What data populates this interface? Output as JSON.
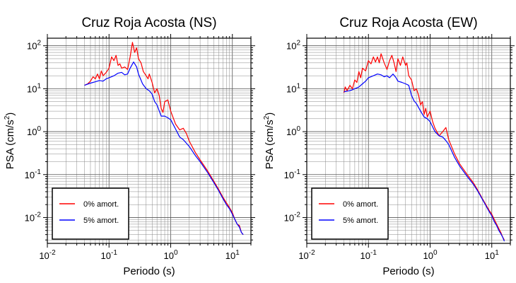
{
  "chart_data": [
    {
      "type": "line",
      "title": "Cruz Roja Acosta (NS)",
      "xlabel": "Periodo (s)",
      "ylabel_main": "PSA (cm/s",
      "ylabel_sup": "2",
      "ylabel_tail": ")",
      "xscale": "log",
      "yscale": "log",
      "xlim": [
        0.01,
        20
      ],
      "ylim": [
        0.0025,
        150
      ],
      "grid": true,
      "legend_position": "bottom-left",
      "x_ticks": [
        {
          "value": 0.01,
          "base": "10",
          "exp": "-2"
        },
        {
          "value": 0.1,
          "base": "10",
          "exp": "-1"
        },
        {
          "value": 1,
          "base": "10",
          "exp": "0"
        },
        {
          "value": 10,
          "base": "10",
          "exp": "1"
        }
      ],
      "y_ticks": [
        {
          "value": 0.01,
          "base": "10",
          "exp": "-2"
        },
        {
          "value": 0.1,
          "base": "10",
          "exp": "-1"
        },
        {
          "value": 1,
          "base": "10",
          "exp": "0"
        },
        {
          "value": 10,
          "base": "10",
          "exp": "1"
        },
        {
          "value": 100,
          "base": "10",
          "exp": "2"
        }
      ],
      "series": [
        {
          "name": "0% amort.",
          "color": "#ff0000",
          "points": [
            [
              0.04,
              12
            ],
            [
              0.045,
              13
            ],
            [
              0.05,
              15
            ],
            [
              0.055,
              19
            ],
            [
              0.06,
              17
            ],
            [
              0.065,
              22
            ],
            [
              0.07,
              17
            ],
            [
              0.075,
              26
            ],
            [
              0.08,
              20
            ],
            [
              0.09,
              24
            ],
            [
              0.1,
              30
            ],
            [
              0.11,
              55
            ],
            [
              0.12,
              45
            ],
            [
              0.13,
              60
            ],
            [
              0.14,
              35
            ],
            [
              0.15,
              38
            ],
            [
              0.16,
              30
            ],
            [
              0.18,
              32
            ],
            [
              0.2,
              28
            ],
            [
              0.22,
              55
            ],
            [
              0.24,
              120
            ],
            [
              0.26,
              70
            ],
            [
              0.28,
              90
            ],
            [
              0.3,
              50
            ],
            [
              0.33,
              40
            ],
            [
              0.36,
              25
            ],
            [
              0.4,
              20
            ],
            [
              0.43,
              17
            ],
            [
              0.45,
              22
            ],
            [
              0.5,
              14
            ],
            [
              0.55,
              8
            ],
            [
              0.6,
              10
            ],
            [
              0.65,
              7
            ],
            [
              0.7,
              3.5
            ],
            [
              0.75,
              2.8
            ],
            [
              0.8,
              5
            ],
            [
              0.9,
              5.5
            ],
            [
              1.0,
              3
            ],
            [
              1.2,
              1.5
            ],
            [
              1.4,
              1.1
            ],
            [
              1.6,
              1.2
            ],
            [
              1.8,
              0.9
            ],
            [
              2.0,
              0.6
            ],
            [
              2.5,
              0.33
            ],
            [
              3,
              0.22
            ],
            [
              4,
              0.12
            ],
            [
              5,
              0.07
            ],
            [
              6,
              0.045
            ],
            [
              7,
              0.03
            ],
            [
              8,
              0.022
            ],
            [
              9,
              0.017
            ],
            [
              10,
              0.013
            ],
            [
              11,
              0.009
            ],
            [
              12,
              0.007
            ],
            [
              13,
              0.0065
            ],
            [
              14,
              0.0045
            ],
            [
              15,
              0.004
            ]
          ]
        },
        {
          "name": "5% amort.",
          "color": "#0000ff",
          "points": [
            [
              0.04,
              12
            ],
            [
              0.05,
              13.5
            ],
            [
              0.06,
              14.5
            ],
            [
              0.07,
              15.5
            ],
            [
              0.08,
              15
            ],
            [
              0.09,
              17
            ],
            [
              0.1,
              18
            ],
            [
              0.12,
              20
            ],
            [
              0.14,
              23
            ],
            [
              0.16,
              24
            ],
            [
              0.18,
              21
            ],
            [
              0.2,
              22
            ],
            [
              0.22,
              30
            ],
            [
              0.25,
              42
            ],
            [
              0.28,
              32
            ],
            [
              0.3,
              22
            ],
            [
              0.35,
              13
            ],
            [
              0.4,
              10
            ],
            [
              0.45,
              9
            ],
            [
              0.5,
              7.5
            ],
            [
              0.55,
              5
            ],
            [
              0.6,
              4.2
            ],
            [
              0.7,
              2.3
            ],
            [
              0.8,
              2.3
            ],
            [
              0.9,
              2.1
            ],
            [
              1.0,
              1.9
            ],
            [
              1.2,
              1.15
            ],
            [
              1.4,
              0.75
            ],
            [
              1.6,
              0.65
            ],
            [
              2.0,
              0.45
            ],
            [
              2.5,
              0.28
            ],
            [
              3,
              0.2
            ],
            [
              4,
              0.11
            ],
            [
              5,
              0.065
            ],
            [
              6,
              0.042
            ],
            [
              7,
              0.028
            ],
            [
              8,
              0.02
            ],
            [
              9,
              0.016
            ],
            [
              10,
              0.012
            ],
            [
              11,
              0.009
            ],
            [
              12,
              0.007
            ],
            [
              13,
              0.006
            ],
            [
              14,
              0.0045
            ],
            [
              15,
              0.004
            ]
          ]
        }
      ]
    },
    {
      "type": "line",
      "title": "Cruz Roja Acosta (EW)",
      "xlabel": "Periodo (s)",
      "ylabel_main": "PSA (cm/s",
      "ylabel_sup": "2",
      "ylabel_tail": ")",
      "xscale": "log",
      "yscale": "log",
      "xlim": [
        0.01,
        20
      ],
      "ylim": [
        0.0025,
        150
      ],
      "grid": true,
      "legend_position": "bottom-left",
      "x_ticks": [
        {
          "value": 0.01,
          "base": "10",
          "exp": "-2"
        },
        {
          "value": 0.1,
          "base": "10",
          "exp": "-1"
        },
        {
          "value": 1,
          "base": "10",
          "exp": "0"
        },
        {
          "value": 10,
          "base": "10",
          "exp": "1"
        }
      ],
      "y_ticks": [
        {
          "value": 0.01,
          "base": "10",
          "exp": "-2"
        },
        {
          "value": 0.1,
          "base": "10",
          "exp": "-1"
        },
        {
          "value": 1,
          "base": "10",
          "exp": "0"
        },
        {
          "value": 10,
          "base": "10",
          "exp": "1"
        },
        {
          "value": 100,
          "base": "10",
          "exp": "2"
        }
      ],
      "series": [
        {
          "name": "0% amort.",
          "color": "#ff0000",
          "points": [
            [
              0.04,
              8
            ],
            [
              0.042,
              11
            ],
            [
              0.045,
              9
            ],
            [
              0.05,
              12
            ],
            [
              0.055,
              10
            ],
            [
              0.06,
              16
            ],
            [
              0.065,
              14
            ],
            [
              0.07,
              25
            ],
            [
              0.075,
              18
            ],
            [
              0.08,
              30
            ],
            [
              0.09,
              26
            ],
            [
              0.1,
              45
            ],
            [
              0.11,
              38
            ],
            [
              0.12,
              55
            ],
            [
              0.13,
              42
            ],
            [
              0.14,
              55
            ],
            [
              0.15,
              40
            ],
            [
              0.16,
              65
            ],
            [
              0.18,
              40
            ],
            [
              0.2,
              28
            ],
            [
              0.22,
              45
            ],
            [
              0.24,
              60
            ],
            [
              0.26,
              40
            ],
            [
              0.28,
              25
            ],
            [
              0.3,
              50
            ],
            [
              0.33,
              35
            ],
            [
              0.36,
              55
            ],
            [
              0.4,
              35
            ],
            [
              0.42,
              40
            ],
            [
              0.45,
              20
            ],
            [
              0.5,
              16
            ],
            [
              0.55,
              9
            ],
            [
              0.6,
              10
            ],
            [
              0.65,
              7
            ],
            [
              0.7,
              4.2
            ],
            [
              0.75,
              5
            ],
            [
              0.8,
              2.5
            ],
            [
              0.85,
              3.5
            ],
            [
              0.9,
              2.2
            ],
            [
              1.0,
              3
            ],
            [
              1.1,
              1.7
            ],
            [
              1.2,
              1.2
            ],
            [
              1.4,
              0.8
            ],
            [
              1.6,
              1.0
            ],
            [
              1.8,
              1.25
            ],
            [
              2.0,
              0.65
            ],
            [
              2.5,
              0.3
            ],
            [
              3,
              0.18
            ],
            [
              4,
              0.1
            ],
            [
              5,
              0.065
            ],
            [
              6,
              0.042
            ],
            [
              7,
              0.028
            ],
            [
              8,
              0.02
            ],
            [
              9,
              0.015
            ],
            [
              10,
              0.012
            ],
            [
              11,
              0.009
            ],
            [
              12,
              0.007
            ],
            [
              13,
              0.0055
            ],
            [
              14,
              0.0045
            ],
            [
              15,
              0.0035
            ],
            [
              16,
              0.003
            ]
          ]
        },
        {
          "name": "5% amort.",
          "color": "#0000ff",
          "points": [
            [
              0.04,
              8.5
            ],
            [
              0.05,
              9
            ],
            [
              0.06,
              10
            ],
            [
              0.07,
              11
            ],
            [
              0.08,
              13
            ],
            [
              0.09,
              15
            ],
            [
              0.1,
              18
            ],
            [
              0.12,
              20
            ],
            [
              0.14,
              22
            ],
            [
              0.16,
              21
            ],
            [
              0.18,
              19
            ],
            [
              0.2,
              20
            ],
            [
              0.22,
              18
            ],
            [
              0.25,
              22
            ],
            [
              0.28,
              18
            ],
            [
              0.3,
              15
            ],
            [
              0.35,
              14
            ],
            [
              0.4,
              13
            ],
            [
              0.45,
              12
            ],
            [
              0.5,
              7
            ],
            [
              0.55,
              5.2
            ],
            [
              0.6,
              4.5
            ],
            [
              0.7,
              3
            ],
            [
              0.8,
              2.2
            ],
            [
              0.9,
              2.0
            ],
            [
              1.0,
              1.7
            ],
            [
              1.2,
              1.0
            ],
            [
              1.4,
              0.8
            ],
            [
              1.6,
              0.75
            ],
            [
              1.8,
              0.62
            ],
            [
              2.0,
              0.5
            ],
            [
              2.5,
              0.25
            ],
            [
              3,
              0.16
            ],
            [
              4,
              0.09
            ],
            [
              5,
              0.06
            ],
            [
              6,
              0.04
            ],
            [
              7,
              0.027
            ],
            [
              8,
              0.019
            ],
            [
              9,
              0.014
            ],
            [
              10,
              0.011
            ],
            [
              11,
              0.008
            ],
            [
              12,
              0.0065
            ],
            [
              13,
              0.005
            ],
            [
              14,
              0.0042
            ],
            [
              15,
              0.0035
            ],
            [
              16,
              0.0028
            ]
          ]
        }
      ]
    }
  ]
}
